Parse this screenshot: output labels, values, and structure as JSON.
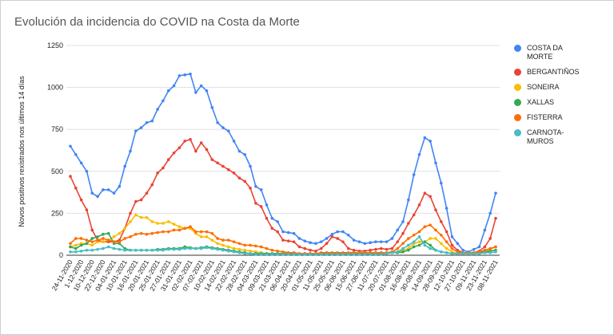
{
  "chart_data": {
    "type": "line",
    "title": "Evolución da incidencia do COVID na Costa da Morte",
    "y_label": "Novos positivos rexistrados nos últimos 14 días",
    "categories": [
      "24-11-2020",
      null,
      "1-12-2020",
      null,
      "10-12-2020",
      null,
      "22-12-2020",
      null,
      "04-01-2021",
      null,
      "10-01-2021",
      null,
      "16-01-2021",
      null,
      "20-01-2021",
      null,
      "25-01-2021",
      null,
      "27-01-2021",
      null,
      "31-01-2021",
      null,
      "02-02-2021",
      null,
      "07-02-2021",
      null,
      "10-02-2021",
      null,
      "14-02-2021",
      null,
      "22-02-2021",
      null,
      "28-02-2021",
      null,
      "04-03-2021",
      null,
      "09-03-2021",
      null,
      "21-03-2021",
      null,
      "06-04-2021",
      null,
      "20-04-2021",
      null,
      "01-05-2021",
      null,
      "11-05-2021",
      null,
      "25-05-2021",
      null,
      "06-06-2021",
      null,
      "15-06-2021",
      null,
      "27-06-2021",
      null,
      "11-07-2021",
      null,
      "20-07-2021",
      null,
      "01-08-2021",
      null,
      "16-08-2021",
      null,
      "30-08-2021",
      null,
      "14-09-2021",
      null,
      "28-09-2021",
      null,
      "12-10-2021",
      null,
      "27-10-2021",
      null,
      "09-11-2021",
      null,
      "23-11-2021",
      null,
      "08-11-2021"
    ],
    "series": [
      {
        "name": "COSTA DA MORTE",
        "color": "#4285f4",
        "values": [
          650,
          600,
          550,
          500,
          370,
          350,
          390,
          390,
          370,
          410,
          530,
          620,
          740,
          760,
          790,
          800,
          870,
          920,
          980,
          1010,
          1070,
          1075,
          1080,
          970,
          1010,
          980,
          880,
          790,
          760,
          740,
          680,
          620,
          600,
          530,
          410,
          390,
          300,
          220,
          200,
          140,
          135,
          130,
          100,
          85,
          75,
          70,
          80,
          100,
          125,
          140,
          140,
          120,
          90,
          80,
          70,
          75,
          80,
          80,
          80,
          100,
          150,
          200,
          330,
          480,
          600,
          700,
          680,
          550,
          430,
          280,
          110,
          70,
          30,
          20,
          35,
          50,
          150,
          250,
          370
        ]
      },
      {
        "name": "BERGANTIÑOS",
        "color": "#ea4335",
        "values": [
          470,
          400,
          330,
          270,
          150,
          90,
          80,
          80,
          80,
          90,
          160,
          250,
          320,
          330,
          370,
          420,
          490,
          520,
          570,
          610,
          640,
          680,
          690,
          620,
          670,
          630,
          570,
          550,
          530,
          510,
          490,
          460,
          440,
          400,
          310,
          290,
          220,
          160,
          140,
          90,
          85,
          80,
          50,
          40,
          30,
          25,
          40,
          70,
          110,
          100,
          80,
          40,
          30,
          25,
          25,
          30,
          35,
          40,
          35,
          40,
          80,
          130,
          190,
          240,
          300,
          370,
          350,
          270,
          200,
          140,
          60,
          30,
          15,
          10,
          15,
          25,
          50,
          100,
          220
        ]
      },
      {
        "name": "SONEIRA",
        "color": "#fbbc04",
        "values": [
          50,
          60,
          70,
          70,
          60,
          80,
          80,
          90,
          110,
          130,
          160,
          200,
          240,
          225,
          225,
          200,
          190,
          190,
          200,
          185,
          170,
          160,
          160,
          130,
          110,
          110,
          90,
          70,
          60,
          50,
          40,
          35,
          30,
          25,
          20,
          15,
          10,
          10,
          10,
          10,
          10,
          10,
          10,
          10,
          10,
          10,
          10,
          10,
          10,
          10,
          10,
          10,
          10,
          10,
          10,
          10,
          15,
          15,
          15,
          20,
          20,
          30,
          40,
          70,
          80,
          80,
          100,
          100,
          70,
          40,
          20,
          10,
          10,
          10,
          15,
          20,
          25,
          35,
          50
        ]
      },
      {
        "name": "XALLAS",
        "color": "#34a853",
        "values": [
          50,
          40,
          60,
          70,
          100,
          110,
          125,
          130,
          70,
          70,
          40,
          30,
          30,
          30,
          30,
          30,
          35,
          35,
          40,
          40,
          40,
          50,
          45,
          40,
          45,
          50,
          45,
          40,
          35,
          30,
          25,
          20,
          15,
          10,
          10,
          10,
          10,
          10,
          10,
          10,
          10,
          10,
          10,
          10,
          10,
          10,
          10,
          10,
          10,
          10,
          10,
          10,
          10,
          10,
          10,
          10,
          10,
          10,
          10,
          15,
          15,
          20,
          30,
          50,
          60,
          80,
          60,
          30,
          20,
          15,
          10,
          10,
          10,
          10,
          10,
          15,
          20,
          25,
          30
        ]
      },
      {
        "name": "FISTERRA",
        "color": "#ff6d01",
        "values": [
          70,
          100,
          100,
          90,
          80,
          90,
          100,
          90,
          80,
          80,
          100,
          110,
          125,
          130,
          125,
          130,
          135,
          140,
          140,
          150,
          150,
          160,
          170,
          140,
          140,
          140,
          130,
          100,
          90,
          90,
          80,
          70,
          60,
          60,
          55,
          50,
          40,
          30,
          25,
          20,
          15,
          15,
          10,
          10,
          10,
          10,
          15,
          15,
          15,
          15,
          15,
          15,
          15,
          15,
          15,
          15,
          15,
          15,
          15,
          20,
          40,
          70,
          100,
          120,
          140,
          170,
          180,
          150,
          120,
          80,
          40,
          20,
          15,
          15,
          15,
          20,
          30,
          40,
          50
        ]
      },
      {
        "name": "CARNOTA-MUROS",
        "color": "#46bdc6",
        "values": [
          20,
          20,
          25,
          30,
          30,
          35,
          40,
          50,
          40,
          35,
          30,
          30,
          30,
          30,
          30,
          30,
          30,
          30,
          35,
          35,
          35,
          40,
          40,
          40,
          40,
          45,
          40,
          35,
          30,
          25,
          20,
          15,
          10,
          10,
          5,
          5,
          5,
          5,
          5,
          5,
          5,
          5,
          5,
          5,
          5,
          5,
          5,
          5,
          5,
          5,
          5,
          5,
          5,
          5,
          5,
          5,
          5,
          5,
          10,
          15,
          20,
          40,
          60,
          80,
          110,
          60,
          40,
          30,
          20,
          15,
          10,
          10,
          10,
          10,
          10,
          10,
          15,
          15,
          20
        ]
      }
    ],
    "ylim": [
      0,
      1250
    ],
    "yticks": [
      0,
      250,
      500,
      750,
      1000,
      1250
    ],
    "grid": true,
    "legend": "right"
  }
}
